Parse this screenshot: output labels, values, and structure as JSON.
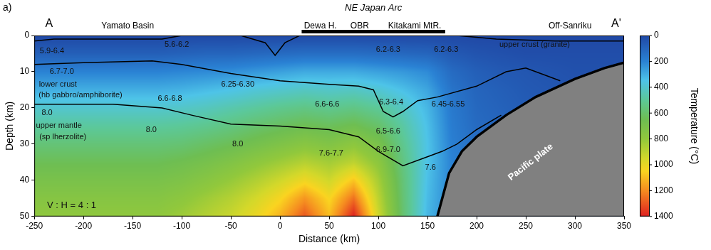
{
  "chart_data": {
    "type": "heatmap",
    "panel_label": "a)",
    "xlabel": "Distance (km)",
    "ylabel": "Depth (km)",
    "xlim": [
      -250,
      350
    ],
    "ylim": [
      50,
      0
    ],
    "xticks": [
      -250,
      -200,
      -150,
      -100,
      -50,
      0,
      50,
      100,
      150,
      200,
      250,
      300,
      350
    ],
    "yticks": [
      0,
      10,
      20,
      30,
      40,
      50
    ],
    "grid": false,
    "arc": {
      "label": "NE Japan Arc",
      "range": [
        22,
        168
      ]
    },
    "top_labels": [
      {
        "text": "A",
        "x": -235
      },
      {
        "text": "Yamato Basin",
        "x": -155
      },
      {
        "text": "Dewa H.",
        "x": 41
      },
      {
        "text": "OBR",
        "x": 81
      },
      {
        "text": "Kitakami MtR.",
        "x": 137
      },
      {
        "text": "Off-Sanriku",
        "x": 295
      },
      {
        "text": "A'",
        "x": 342
      }
    ],
    "temperature": {
      "label": "Temperature (°C)",
      "range": [
        0,
        1400
      ],
      "ticks": [
        0,
        200,
        400,
        600,
        800,
        1000,
        1200,
        1400
      ],
      "x": [
        -250,
        -225,
        -200,
        -175,
        -150,
        -125,
        -100,
        -75,
        -50,
        -25,
        0,
        25,
        50,
        75,
        100,
        125,
        150,
        175,
        200,
        225,
        250,
        275,
        300,
        325,
        350
      ],
      "depth": [
        0,
        5,
        10,
        15,
        20,
        25,
        30,
        35,
        40,
        45,
        50
      ],
      "values": [
        [
          0,
          0,
          0,
          0,
          0,
          0,
          0,
          0,
          0,
          0,
          0,
          0,
          0,
          0,
          0,
          0,
          0,
          0,
          0,
          0,
          0,
          0,
          0,
          0,
          0
        ],
        [
          80,
          80,
          80,
          80,
          80,
          80,
          90,
          100,
          100,
          110,
          120,
          130,
          130,
          130,
          120,
          110,
          100,
          60,
          40,
          30,
          20,
          20,
          20,
          20,
          20
        ],
        [
          200,
          200,
          200,
          200,
          200,
          200,
          210,
          220,
          230,
          250,
          270,
          290,
          290,
          290,
          270,
          250,
          220,
          120,
          80,
          60,
          50,
          40,
          30,
          30,
          30
        ],
        [
          300,
          300,
          300,
          300,
          300,
          300,
          310,
          330,
          350,
          380,
          400,
          420,
          410,
          420,
          390,
          340,
          280,
          150,
          100,
          80,
          60,
          50,
          40,
          40,
          40
        ],
        [
          400,
          400,
          400,
          400,
          400,
          400,
          410,
          430,
          460,
          490,
          520,
          540,
          520,
          540,
          500,
          420,
          320,
          170,
          110,
          90,
          70,
          60,
          50,
          50,
          50
        ],
        [
          490,
          490,
          490,
          490,
          490,
          490,
          500,
          520,
          550,
          590,
          620,
          650,
          630,
          660,
          600,
          480,
          340,
          180,
          120,
          100,
          80,
          70,
          60,
          60,
          60
        ],
        [
          570,
          570,
          570,
          570,
          570,
          570,
          580,
          610,
          640,
          680,
          720,
          760,
          730,
          780,
          700,
          520,
          350,
          190,
          130,
          110,
          90,
          80,
          70,
          70,
          70
        ],
        [
          640,
          640,
          640,
          640,
          640,
          640,
          660,
          690,
          730,
          780,
          830,
          880,
          840,
          900,
          780,
          550,
          350,
          200,
          140,
          120,
          100,
          90,
          80,
          80,
          80
        ],
        [
          700,
          700,
          700,
          700,
          700,
          700,
          720,
          760,
          810,
          870,
          940,
          1020,
          940,
          1080,
          850,
          570,
          340,
          200,
          150,
          130,
          110,
          100,
          90,
          90,
          90
        ],
        [
          750,
          750,
          750,
          750,
          750,
          750,
          780,
          830,
          880,
          950,
          1040,
          1180,
          1040,
          1250,
          900,
          580,
          330,
          200,
          150,
          140,
          120,
          110,
          100,
          100,
          100
        ],
        [
          790,
          790,
          790,
          790,
          790,
          790,
          830,
          880,
          930,
          1010,
          1120,
          1300,
          1100,
          1400,
          940,
          590,
          320,
          200,
          160,
          150,
          130,
          120,
          110,
          110,
          110
        ]
      ]
    },
    "boundaries": [
      [
        [
          -250,
          1.5
        ],
        [
          -230,
          1
        ],
        [
          -120,
          1
        ],
        [
          -100,
          0
        ],
        [
          -40,
          0
        ],
        [
          -15,
          2
        ],
        [
          -5,
          5.5
        ],
        [
          5,
          2
        ],
        [
          20,
          0
        ],
        [
          180,
          0
        ],
        [
          220,
          1
        ],
        [
          280,
          1.5
        ],
        [
          350,
          1.5
        ]
      ],
      [
        [
          -250,
          8
        ],
        [
          -200,
          7.5
        ],
        [
          -130,
          7
        ],
        [
          -100,
          8
        ],
        [
          -50,
          10.5
        ],
        [
          0,
          12.5
        ],
        [
          50,
          13.5
        ],
        [
          80,
          14
        ],
        [
          95,
          15
        ],
        [
          105,
          21
        ],
        [
          115,
          22.5
        ],
        [
          125,
          21
        ],
        [
          140,
          18
        ],
        [
          160,
          17
        ],
        [
          200,
          14
        ],
        [
          230,
          10
        ],
        [
          250,
          9
        ],
        [
          270,
          11
        ],
        [
          285,
          12.5
        ]
      ],
      [
        [
          -250,
          19
        ],
        [
          -170,
          19
        ],
        [
          -120,
          20
        ],
        [
          -90,
          22
        ],
        [
          -50,
          24.5
        ],
        [
          0,
          25
        ],
        [
          50,
          26
        ],
        [
          80,
          28
        ],
        [
          100,
          32
        ],
        [
          125,
          36
        ],
        [
          145,
          34
        ],
        [
          165,
          32
        ],
        [
          180,
          30
        ],
        [
          200,
          26
        ],
        [
          225,
          22
        ]
      ]
    ],
    "slab": {
      "label": "Pacific plate",
      "label_x": 255,
      "label_y": 35,
      "top": [
        [
          160,
          50
        ],
        [
          165,
          45
        ],
        [
          172,
          38
        ],
        [
          185,
          32
        ],
        [
          200,
          28
        ],
        [
          230,
          22
        ],
        [
          260,
          17
        ],
        [
          300,
          12
        ],
        [
          330,
          9
        ],
        [
          350,
          7.5
        ]
      ]
    },
    "annotations": [
      {
        "text": "5.9-6.4",
        "x": -232,
        "y": 4.3
      },
      {
        "text": "5.6-6.2",
        "x": -105,
        "y": 2.5
      },
      {
        "text": "6.7-7.0",
        "x": -222,
        "y": 10
      },
      {
        "text": "lower crust",
        "x": -226,
        "y": 13.5
      },
      {
        "text": "(hb gabbro/amphiborite)",
        "x": -203,
        "y": 16.5
      },
      {
        "text": "6.6-6.8",
        "x": -112,
        "y": 17.5
      },
      {
        "text": "6.25-6.30",
        "x": -43,
        "y": 13.5
      },
      {
        "text": "8.0",
        "x": -237,
        "y": 21.3
      },
      {
        "text": "upper mantle",
        "x": -225,
        "y": 25
      },
      {
        "text": "(sp lherzolite)",
        "x": -221,
        "y": 28
      },
      {
        "text": "8.0",
        "x": -131,
        "y": 26
      },
      {
        "text": "8.0",
        "x": -43,
        "y": 30
      },
      {
        "text": "6.6-6.6",
        "x": 48,
        "y": 19
      },
      {
        "text": "7.6-7.7",
        "x": 52,
        "y": 32.5
      },
      {
        "text": "6.2-6.3",
        "x": 110,
        "y": 4
      },
      {
        "text": "6.2-6.3",
        "x": 169,
        "y": 4
      },
      {
        "text": "6.3-6.4",
        "x": 113,
        "y": 18.5
      },
      {
        "text": "6.45-6.55",
        "x": 171,
        "y": 19
      },
      {
        "text": "6.5-6.6",
        "x": 110,
        "y": 26.5
      },
      {
        "text": "6.9-7.0",
        "x": 110,
        "y": 31.5
      },
      {
        "text": "7.6",
        "x": 153,
        "y": 36.5
      },
      {
        "text": "upper crust (granite)",
        "x": 259,
        "y": 2.5
      },
      {
        "text": "V : H = 4 : 1",
        "x": -212,
        "y": 47
      }
    ]
  }
}
